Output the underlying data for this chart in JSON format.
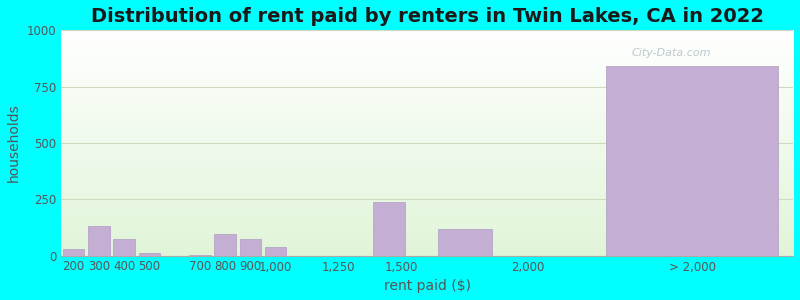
{
  "title": "Distribution of rent paid by renters in Twin Lakes, CA in 2022",
  "xlabel": "rent paid ($)",
  "ylabel": "households",
  "background_outer": "#00FFFF",
  "bar_color": "#c4aed4",
  "bar_edge_color": "#b09cc0",
  "categories": [
    "200",
    "300",
    "400",
    "500",
    "700",
    "800",
    "900",
    "1,000",
    "1,250",
    "1,500",
    "2,000",
    "> 2,000"
  ],
  "left_edges": [
    150,
    250,
    350,
    450,
    650,
    750,
    850,
    950,
    1100,
    1375,
    1625,
    2250
  ],
  "bar_widths": [
    100,
    100,
    100,
    100,
    100,
    100,
    100,
    100,
    150,
    150,
    250,
    800
  ],
  "tick_positions": [
    200,
    300,
    400,
    500,
    700,
    800,
    900,
    1000,
    1250,
    1500,
    2000,
    2650
  ],
  "values": [
    30,
    130,
    75,
    10,
    5,
    95,
    75,
    40,
    0,
    240,
    120,
    840
  ],
  "ylim": [
    0,
    1000
  ],
  "yticks": [
    0,
    250,
    500,
    750,
    1000
  ],
  "title_fontsize": 14,
  "axis_label_fontsize": 10,
  "tick_fontsize": 8.5,
  "title_color": "#1a1a1a",
  "label_color": "#555555",
  "tick_color": "#555555",
  "grid_color": "#d0d8c0",
  "watermark_text": "City-Data.com",
  "watermark_color": "#b0bec5",
  "xlim": [
    150,
    3050
  ]
}
